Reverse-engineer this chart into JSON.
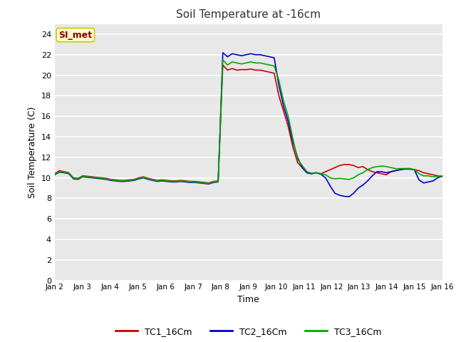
{
  "title": "Soil Temperature at -16cm",
  "xlabel": "Time",
  "ylabel": "Soil Temperature (C)",
  "ylim": [
    0,
    25
  ],
  "yticks": [
    0,
    2,
    4,
    6,
    8,
    10,
    12,
    14,
    16,
    18,
    20,
    22,
    24
  ],
  "fig_bg": "#ffffff",
  "plot_bg": "#e8e8e8",
  "grid_color": "#ffffff",
  "annotation_text": "SI_met",
  "annotation_color": "#8b0000",
  "annotation_bg": "#ffffcc",
  "annotation_edge": "#cccc00",
  "series": {
    "TC1_16Cm": {
      "color": "#cc0000",
      "linewidth": 1.2
    },
    "TC2_16Cm": {
      "color": "#0000cc",
      "linewidth": 1.2
    },
    "TC3_16Cm": {
      "color": "#00aa00",
      "linewidth": 1.2
    }
  },
  "x_labels": [
    "Jan 2",
    "Jan 3",
    "Jan 4",
    "Jan 5",
    "Jan 6",
    "Jan 7",
    "Jan 8",
    "Jan 9",
    "Jan 10",
    "Jan 11",
    "Jan 12",
    "Jan 13",
    "Jan 14",
    "Jan 15",
    "Jan 16"
  ],
  "TC1_data": [
    10.4,
    10.7,
    10.6,
    10.5,
    10.0,
    9.95,
    10.2,
    10.15,
    10.1,
    10.05,
    10.0,
    9.95,
    9.85,
    9.8,
    9.75,
    9.75,
    9.8,
    9.85,
    10.0,
    10.1,
    9.95,
    9.85,
    9.75,
    9.8,
    9.75,
    9.7,
    9.7,
    9.75,
    9.7,
    9.65,
    9.65,
    9.6,
    9.55,
    9.5,
    9.65,
    9.7,
    21.0,
    20.5,
    20.65,
    20.5,
    20.55,
    20.55,
    20.6,
    20.5,
    20.5,
    20.4,
    20.3,
    20.2,
    18.0,
    16.5,
    15.0,
    13.0,
    11.5,
    11.0,
    10.5,
    10.4,
    10.5,
    10.4,
    10.6,
    10.8,
    11.0,
    11.2,
    11.3,
    11.3,
    11.2,
    11.0,
    11.1,
    10.8,
    10.6,
    10.5,
    10.4,
    10.3,
    10.6,
    10.7,
    10.8,
    10.9,
    10.9,
    10.8,
    10.7,
    10.5,
    10.4,
    10.3,
    10.2,
    10.1
  ],
  "TC2_data": [
    10.3,
    10.55,
    10.5,
    10.4,
    9.9,
    9.85,
    10.1,
    10.05,
    10.0,
    9.95,
    9.9,
    9.85,
    9.75,
    9.7,
    9.65,
    9.65,
    9.7,
    9.75,
    9.9,
    10.0,
    9.85,
    9.75,
    9.65,
    9.7,
    9.65,
    9.6,
    9.6,
    9.65,
    9.6,
    9.55,
    9.55,
    9.5,
    9.45,
    9.4,
    9.55,
    9.6,
    22.2,
    21.8,
    22.1,
    22.0,
    21.9,
    22.0,
    22.1,
    22.0,
    22.0,
    21.9,
    21.8,
    21.7,
    19.0,
    17.0,
    15.5,
    13.5,
    12.0,
    11.0,
    10.5,
    10.4,
    10.5,
    10.35,
    10.0,
    9.2,
    8.5,
    8.3,
    8.2,
    8.15,
    8.5,
    9.0,
    9.3,
    9.7,
    10.2,
    10.6,
    10.6,
    10.5,
    10.6,
    10.7,
    10.8,
    10.85,
    10.85,
    10.8,
    9.8,
    9.5,
    9.6,
    9.7,
    10.0,
    10.2
  ],
  "TC3_data": [
    10.35,
    10.6,
    10.55,
    10.45,
    9.95,
    9.9,
    10.15,
    10.1,
    10.05,
    10.0,
    9.95,
    9.9,
    9.8,
    9.75,
    9.7,
    9.7,
    9.75,
    9.8,
    9.95,
    10.05,
    9.9,
    9.8,
    9.7,
    9.75,
    9.7,
    9.65,
    9.65,
    9.7,
    9.65,
    9.6,
    9.6,
    9.55,
    9.5,
    9.45,
    9.6,
    9.65,
    21.5,
    21.0,
    21.3,
    21.2,
    21.1,
    21.2,
    21.3,
    21.2,
    21.2,
    21.1,
    21.0,
    20.9,
    19.5,
    17.5,
    16.0,
    13.8,
    11.8,
    11.2,
    10.6,
    10.45,
    10.5,
    10.4,
    10.3,
    10.0,
    9.9,
    9.95,
    9.9,
    9.85,
    10.0,
    10.3,
    10.5,
    10.8,
    11.0,
    11.1,
    11.15,
    11.1,
    11.0,
    10.9,
    10.9,
    10.9,
    10.9,
    10.8,
    10.4,
    10.2,
    10.2,
    10.1,
    10.15,
    10.2
  ]
}
